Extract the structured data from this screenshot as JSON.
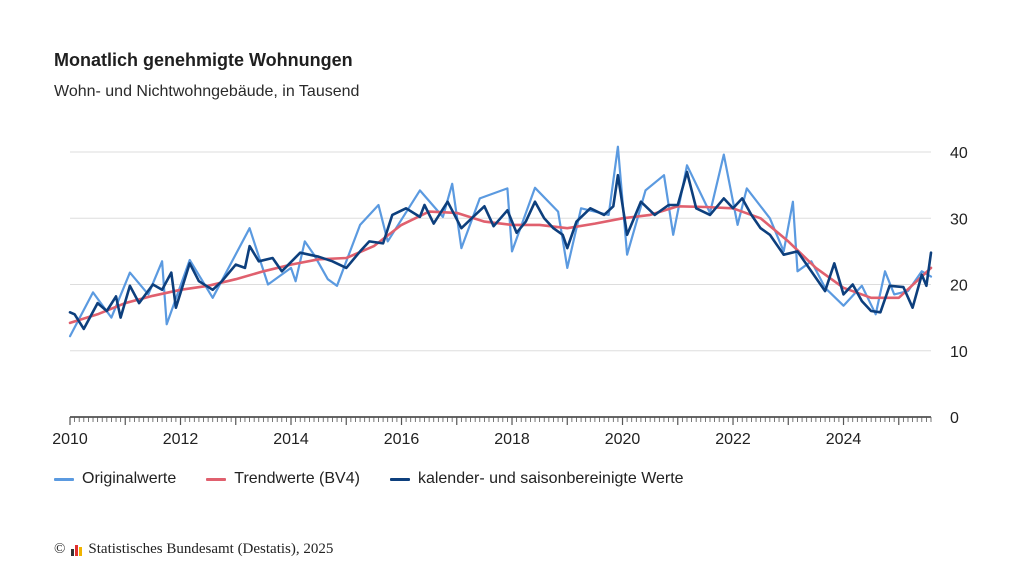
{
  "title": "Monatlich genehmigte Wohnungen",
  "subtitle": "Wohn- und Nichtwohngebäude, in Tausend",
  "footer": "© Statistisches Bundesamt (Destatis), 2025",
  "colors": {
    "original": "#5b9ae0",
    "trend": "#e0606e",
    "adjusted": "#0d3f7d",
    "grid": "#dddddd",
    "axis": "#333333",
    "logo": [
      "#333333",
      "#e03030",
      "#f0b400"
    ]
  },
  "legend": [
    {
      "label": "Originalwerte",
      "key": "original"
    },
    {
      "label": "Trendwerte (BV4)",
      "key": "trend"
    },
    {
      "label": "kalender- und saisonbereinigte Werte",
      "key": "adjusted"
    }
  ],
  "chart_data": {
    "type": "line",
    "title": "Monatlich genehmigte Wohnungen",
    "subtitle": "Wohn- und Nichtwohngebäude, in Tausend",
    "x_range": [
      "2010-01",
      "2025-08"
    ],
    "x_ticks": [
      "2010",
      "2012",
      "2014",
      "2016",
      "2018",
      "2020",
      "2022",
      "2024"
    ],
    "y_ticks": [
      0,
      10,
      20,
      30,
      40
    ],
    "ylim": [
      0,
      40
    ],
    "y_axis_side": "right",
    "grid": true,
    "legend_position": "bottom",
    "series": [
      {
        "name": "Originalwerte",
        "key": "original",
        "points": [
          [
            "2010-01",
            12.2
          ],
          [
            "2010-06",
            18.8
          ],
          [
            "2010-10",
            15.0
          ],
          [
            "2011-02",
            21.8
          ],
          [
            "2011-06",
            18.5
          ],
          [
            "2011-09",
            23.5
          ],
          [
            "2011-10",
            14.0
          ],
          [
            "2012-03",
            23.7
          ],
          [
            "2012-08",
            18.0
          ],
          [
            "2013-04",
            28.5
          ],
          [
            "2013-08",
            20.0
          ],
          [
            "2014-01",
            22.5
          ],
          [
            "2014-02",
            20.5
          ],
          [
            "2014-04",
            26.5
          ],
          [
            "2014-06",
            24.5
          ],
          [
            "2014-09",
            20.8
          ],
          [
            "2014-11",
            19.8
          ],
          [
            "2015-04",
            29.0
          ],
          [
            "2015-08",
            32.0
          ],
          [
            "2015-10",
            26.5
          ],
          [
            "2016-05",
            34.2
          ],
          [
            "2016-10",
            30.2
          ],
          [
            "2016-12",
            35.2
          ],
          [
            "2017-02",
            25.5
          ],
          [
            "2017-06",
            33.0
          ],
          [
            "2017-12",
            34.5
          ],
          [
            "2018-01",
            25.0
          ],
          [
            "2018-06",
            34.6
          ],
          [
            "2018-11",
            31.0
          ],
          [
            "2019-01",
            22.5
          ],
          [
            "2019-04",
            31.5
          ],
          [
            "2019-10",
            30.5
          ],
          [
            "2019-12",
            40.8
          ],
          [
            "2020-02",
            24.5
          ],
          [
            "2020-06",
            34.2
          ],
          [
            "2020-10",
            36.5
          ],
          [
            "2020-12",
            27.5
          ],
          [
            "2021-03",
            38.0
          ],
          [
            "2021-08",
            30.8
          ],
          [
            "2021-11",
            39.6
          ],
          [
            "2022-02",
            29.0
          ],
          [
            "2022-04",
            34.5
          ],
          [
            "2022-09",
            30.0
          ],
          [
            "2022-12",
            25.0
          ],
          [
            "2023-02",
            32.5
          ],
          [
            "2023-03",
            22.0
          ],
          [
            "2023-06",
            23.5
          ],
          [
            "2023-09",
            19.5
          ],
          [
            "2024-01",
            16.8
          ],
          [
            "2024-05",
            19.8
          ],
          [
            "2024-08",
            15.5
          ],
          [
            "2024-10",
            22.0
          ],
          [
            "2024-12",
            18.5
          ],
          [
            "2025-03",
            19.0
          ],
          [
            "2025-06",
            22.0
          ],
          [
            "2025-08",
            21.2
          ]
        ]
      },
      {
        "name": "Trendwerte (BV4)",
        "key": "trend",
        "points": [
          [
            "2010-01",
            14.2
          ],
          [
            "2010-07",
            15.5
          ],
          [
            "2011-01",
            17.2
          ],
          [
            "2011-07",
            18.3
          ],
          [
            "2012-01",
            19.2
          ],
          [
            "2012-07",
            19.8
          ],
          [
            "2013-01",
            20.8
          ],
          [
            "2013-07",
            22.0
          ],
          [
            "2014-01",
            23.0
          ],
          [
            "2014-07",
            23.8
          ],
          [
            "2015-01",
            24.0
          ],
          [
            "2015-07",
            25.8
          ],
          [
            "2016-01",
            29.0
          ],
          [
            "2016-07",
            31.0
          ],
          [
            "2017-01",
            30.8
          ],
          [
            "2017-07",
            29.5
          ],
          [
            "2018-01",
            29.0
          ],
          [
            "2018-07",
            29.0
          ],
          [
            "2019-01",
            28.5
          ],
          [
            "2019-07",
            29.2
          ],
          [
            "2020-01",
            30.0
          ],
          [
            "2020-07",
            30.5
          ],
          [
            "2021-01",
            31.8
          ],
          [
            "2021-07",
            31.7
          ],
          [
            "2022-01",
            31.5
          ],
          [
            "2022-07",
            30.0
          ],
          [
            "2023-01",
            26.5
          ],
          [
            "2023-07",
            22.5
          ],
          [
            "2024-01",
            19.5
          ],
          [
            "2024-07",
            18.0
          ],
          [
            "2025-01",
            18.0
          ],
          [
            "2025-08",
            22.5
          ]
        ]
      },
      {
        "name": "kalender- und saisonbereinigte Werte",
        "key": "adjusted",
        "points": [
          [
            "2010-01",
            15.8
          ],
          [
            "2010-02",
            15.5
          ],
          [
            "2010-04",
            13.3
          ],
          [
            "2010-07",
            17.2
          ],
          [
            "2010-09",
            16.0
          ],
          [
            "2010-11",
            18.2
          ],
          [
            "2010-12",
            15.0
          ],
          [
            "2011-02",
            19.8
          ],
          [
            "2011-04",
            17.2
          ],
          [
            "2011-07",
            20.0
          ],
          [
            "2011-09",
            19.2
          ],
          [
            "2011-11",
            21.8
          ],
          [
            "2011-12",
            16.5
          ],
          [
            "2012-03",
            23.2
          ],
          [
            "2012-05",
            20.5
          ],
          [
            "2012-08",
            19.2
          ],
          [
            "2012-10",
            20.5
          ],
          [
            "2013-01",
            23.0
          ],
          [
            "2013-03",
            22.5
          ],
          [
            "2013-04",
            25.8
          ],
          [
            "2013-06",
            23.5
          ],
          [
            "2013-09",
            24.0
          ],
          [
            "2013-11",
            22.0
          ],
          [
            "2014-03",
            24.8
          ],
          [
            "2014-07",
            24.2
          ],
          [
            "2014-10",
            23.5
          ],
          [
            "2015-01",
            22.5
          ],
          [
            "2015-04",
            25.0
          ],
          [
            "2015-06",
            26.5
          ],
          [
            "2015-09",
            26.2
          ],
          [
            "2015-11",
            30.5
          ],
          [
            "2016-02",
            31.5
          ],
          [
            "2016-05",
            30.2
          ],
          [
            "2016-06",
            32.0
          ],
          [
            "2016-08",
            29.2
          ],
          [
            "2016-11",
            32.5
          ],
          [
            "2017-02",
            28.5
          ],
          [
            "2017-05",
            30.5
          ],
          [
            "2017-07",
            31.8
          ],
          [
            "2017-09",
            28.8
          ],
          [
            "2017-12",
            31.2
          ],
          [
            "2018-02",
            27.8
          ],
          [
            "2018-04",
            29.5
          ],
          [
            "2018-06",
            32.5
          ],
          [
            "2018-08",
            30.0
          ],
          [
            "2018-10",
            28.5
          ],
          [
            "2018-12",
            27.5
          ],
          [
            "2019-01",
            25.5
          ],
          [
            "2019-03",
            29.5
          ],
          [
            "2019-06",
            31.5
          ],
          [
            "2019-09",
            30.5
          ],
          [
            "2019-11",
            31.8
          ],
          [
            "2019-12",
            36.5
          ],
          [
            "2020-02",
            27.5
          ],
          [
            "2020-05",
            32.5
          ],
          [
            "2020-08",
            30.5
          ],
          [
            "2020-11",
            32.0
          ],
          [
            "2021-01",
            32.0
          ],
          [
            "2021-03",
            37.0
          ],
          [
            "2021-05",
            31.5
          ],
          [
            "2021-08",
            30.5
          ],
          [
            "2021-11",
            33.0
          ],
          [
            "2022-01",
            31.5
          ],
          [
            "2022-03",
            33.0
          ],
          [
            "2022-05",
            30.5
          ],
          [
            "2022-07",
            28.5
          ],
          [
            "2022-09",
            27.5
          ],
          [
            "2022-12",
            24.5
          ],
          [
            "2023-03",
            25.0
          ],
          [
            "2023-06",
            22.0
          ],
          [
            "2023-09",
            19.0
          ],
          [
            "2023-11",
            23.2
          ],
          [
            "2024-01",
            18.5
          ],
          [
            "2024-03",
            20.0
          ],
          [
            "2024-05",
            17.5
          ],
          [
            "2024-07",
            16.0
          ],
          [
            "2024-09",
            15.8
          ],
          [
            "2024-11",
            19.8
          ],
          [
            "2025-02",
            19.6
          ],
          [
            "2025-04",
            16.5
          ],
          [
            "2025-06",
            21.5
          ],
          [
            "2025-07",
            19.8
          ],
          [
            "2025-08",
            24.8
          ]
        ]
      }
    ]
  }
}
